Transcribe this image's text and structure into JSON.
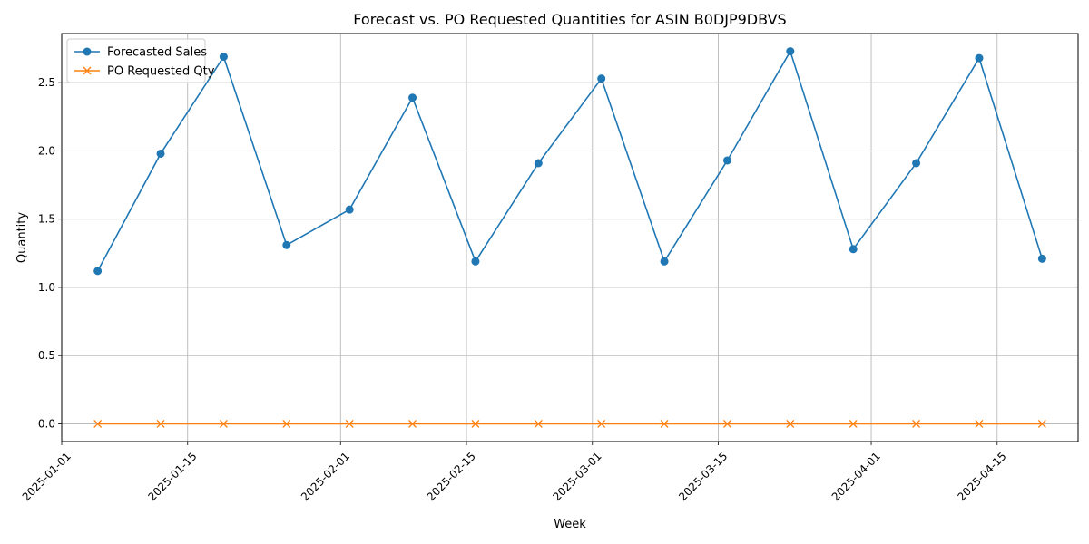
{
  "chart_data": {
    "type": "line",
    "title": "Forecast vs. PO Requested Quantities for ASIN B0DJP9DBVS",
    "xlabel": "Week",
    "ylabel": "Quantity",
    "x": [
      "2025-01-05",
      "2025-01-12",
      "2025-01-19",
      "2025-01-26",
      "2025-02-02",
      "2025-02-09",
      "2025-02-16",
      "2025-02-23",
      "2025-03-02",
      "2025-03-09",
      "2025-03-16",
      "2025-03-23",
      "2025-03-30",
      "2025-04-06",
      "2025-04-13",
      "2025-04-20"
    ],
    "xlim": [
      "2025-01-01",
      "2025-04-24"
    ],
    "ylim": [
      -0.13,
      2.86
    ],
    "x_ticks": [
      "2025-01-01",
      "2025-01-15",
      "2025-02-01",
      "2025-02-15",
      "2025-03-01",
      "2025-03-15",
      "2025-04-01",
      "2025-04-15"
    ],
    "y_ticks": [
      "0.0",
      "0.5",
      "1.0",
      "1.5",
      "2.0",
      "2.5"
    ],
    "grid": true,
    "legend_position": "top-left",
    "series": [
      {
        "name": "Forecasted Sales",
        "color": "#1f77b4",
        "marker": "circle",
        "values": [
          1.12,
          1.98,
          2.69,
          1.31,
          1.57,
          2.39,
          1.19,
          1.91,
          2.53,
          1.19,
          1.93,
          2.73,
          1.28,
          1.91,
          2.68,
          1.21
        ]
      },
      {
        "name": "PO Requested Qty",
        "color": "#ff7f0e",
        "marker": "x",
        "values": [
          0,
          0,
          0,
          0,
          0,
          0,
          0,
          0,
          0,
          0,
          0,
          0,
          0,
          0,
          0,
          0
        ]
      }
    ]
  }
}
